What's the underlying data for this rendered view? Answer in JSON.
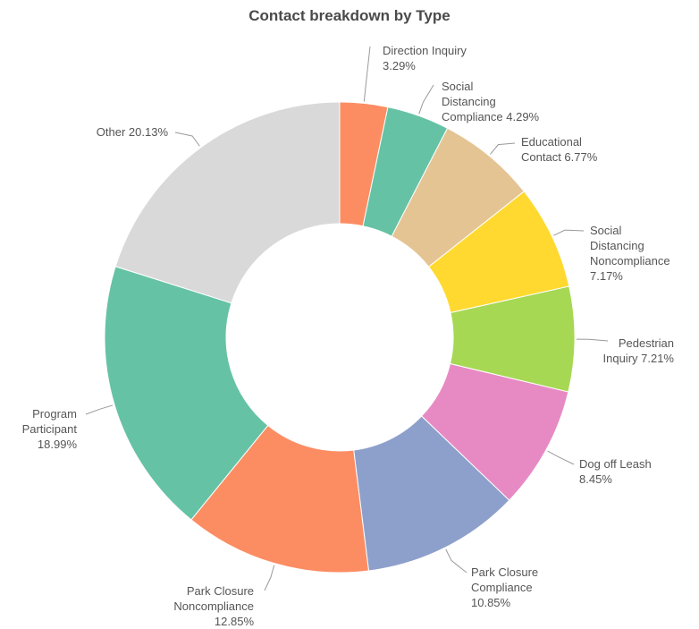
{
  "chart_data": {
    "type": "pie",
    "title": "Contact breakdown by Type",
    "donut": true,
    "legend": "none",
    "slices": [
      {
        "label": "Direction Inquiry",
        "value": 3.29,
        "pct_text": "3.29%",
        "color": "#fc8d62"
      },
      {
        "label": "Social Distancing Compliance",
        "value": 4.29,
        "pct_text": "4.29%",
        "color": "#66c2a5"
      },
      {
        "label": "Educational Contact",
        "value": 6.77,
        "pct_text": "6.77%",
        "color": "#e5c494"
      },
      {
        "label": "Social Distancing Noncompliance",
        "value": 7.17,
        "pct_text": "7.17%",
        "color": "#ffd92f"
      },
      {
        "label": "Pedestrian Inquiry",
        "value": 7.21,
        "pct_text": "7.21%",
        "color": "#a6d854"
      },
      {
        "label": "Dog off Leash",
        "value": 8.45,
        "pct_text": "8.45%",
        "color": "#e78ac3"
      },
      {
        "label": "Park Closure Compliance",
        "value": 10.85,
        "pct_text": "10.85%",
        "color": "#8da0cb"
      },
      {
        "label": "Park Closure Noncompliance",
        "value": 12.85,
        "pct_text": "12.85%",
        "color": "#fc8d62"
      },
      {
        "label": "Program Participant",
        "value": 18.99,
        "pct_text": "18.99%",
        "color": "#66c2a5"
      },
      {
        "label": "Other",
        "value": 20.13,
        "pct_text": "20.13%",
        "color": "#d9d9d9"
      }
    ]
  }
}
